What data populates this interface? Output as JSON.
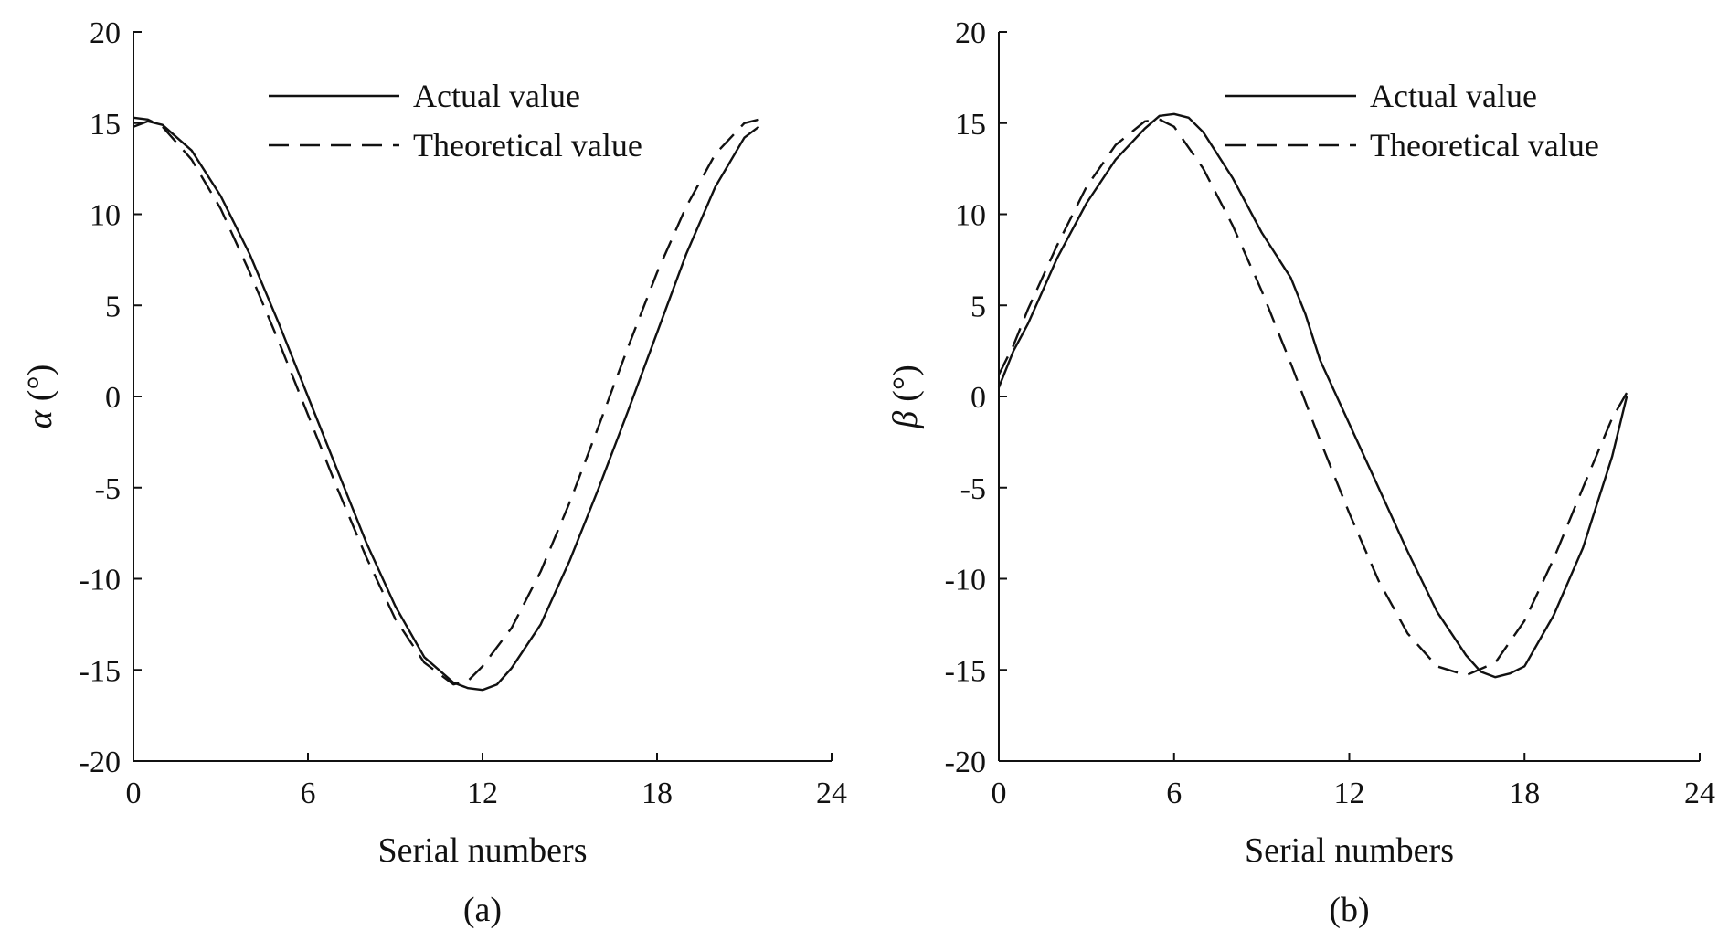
{
  "chart_data": [
    {
      "type": "line",
      "panel_label": "(a)",
      "xlabel": "Serial numbers",
      "ylabel_symbol": "α",
      "ylabel_unit": "(°)",
      "xlim": [
        0,
        24
      ],
      "ylim": [
        -20,
        20
      ],
      "xticks": [
        0,
        6,
        12,
        18,
        24
      ],
      "yticks": [
        20,
        15,
        10,
        5,
        0,
        -5,
        -10,
        -15,
        -20
      ],
      "grid": false,
      "legend_position": "top-right",
      "series": [
        {
          "name": "Actual value",
          "style": "solid",
          "x": [
            0,
            0.5,
            1,
            2,
            3,
            4,
            5,
            6,
            7,
            8,
            9,
            10,
            11,
            11.5,
            12,
            12.5,
            13,
            14,
            15,
            16,
            17,
            18,
            19,
            20,
            21,
            21.5
          ],
          "y": [
            14.8,
            15.1,
            14.9,
            13.5,
            11.0,
            7.8,
            4.0,
            0.0,
            -4.0,
            -8.0,
            -11.5,
            -14.3,
            -15.7,
            -16.0,
            -16.1,
            -15.8,
            -14.9,
            -12.5,
            -9.0,
            -5.0,
            -0.8,
            3.5,
            7.8,
            11.5,
            14.2,
            14.8
          ]
        },
        {
          "name": "Theoretical value",
          "style": "dashed",
          "x": [
            0,
            0.5,
            1,
            2,
            3,
            4,
            5,
            6,
            7,
            8,
            9,
            10,
            11,
            11.5,
            12,
            13,
            14,
            15,
            16,
            17,
            18,
            19,
            20,
            21,
            21.5
          ],
          "y": [
            15.3,
            15.2,
            14.8,
            13.0,
            10.3,
            6.8,
            3.0,
            -1.0,
            -5.0,
            -8.8,
            -12.2,
            -14.6,
            -15.8,
            -15.6,
            -14.8,
            -12.7,
            -9.6,
            -5.8,
            -1.6,
            2.7,
            6.8,
            10.4,
            13.3,
            15.0,
            15.2
          ]
        }
      ]
    },
    {
      "type": "line",
      "panel_label": "(b)",
      "xlabel": "Serial numbers",
      "ylabel_symbol": "β",
      "ylabel_unit": "(°)",
      "xlim": [
        0,
        24
      ],
      "ylim": [
        -20,
        20
      ],
      "xticks": [
        0,
        6,
        12,
        18,
        24
      ],
      "yticks": [
        20,
        15,
        10,
        5,
        0,
        -5,
        -10,
        -15,
        -20
      ],
      "grid": false,
      "legend_position": "top-right",
      "series": [
        {
          "name": "Actual value",
          "style": "solid",
          "x": [
            0,
            0.5,
            1,
            2,
            3,
            4,
            5,
            5.5,
            6,
            6.5,
            7,
            8,
            9,
            10,
            10.5,
            11,
            12,
            13,
            14,
            15,
            16,
            16.5,
            17,
            17.5,
            18,
            19,
            20,
            21,
            21.5
          ],
          "y": [
            0.5,
            2.5,
            4.0,
            7.6,
            10.6,
            13.0,
            14.7,
            15.4,
            15.5,
            15.3,
            14.5,
            12.0,
            9.0,
            6.5,
            4.5,
            2.0,
            -1.5,
            -5.0,
            -8.5,
            -11.8,
            -14.2,
            -15.1,
            -15.4,
            -15.2,
            -14.8,
            -12.0,
            -8.3,
            -3.3,
            0.0
          ]
        },
        {
          "name": "Theoretical value",
          "style": "dashed",
          "x": [
            0,
            0.5,
            1,
            2,
            3,
            4,
            5,
            5.5,
            6,
            7,
            8,
            9,
            10,
            11,
            12,
            13,
            14,
            15,
            16,
            17,
            18,
            19,
            20,
            21,
            21.5
          ],
          "y": [
            1.2,
            2.8,
            4.8,
            8.3,
            11.5,
            13.8,
            15.1,
            15.2,
            14.8,
            12.5,
            9.4,
            5.8,
            1.8,
            -2.4,
            -6.4,
            -10.1,
            -13.0,
            -14.8,
            -15.3,
            -14.6,
            -12.3,
            -8.9,
            -5.0,
            -1.2,
            0.2
          ]
        }
      ]
    }
  ]
}
